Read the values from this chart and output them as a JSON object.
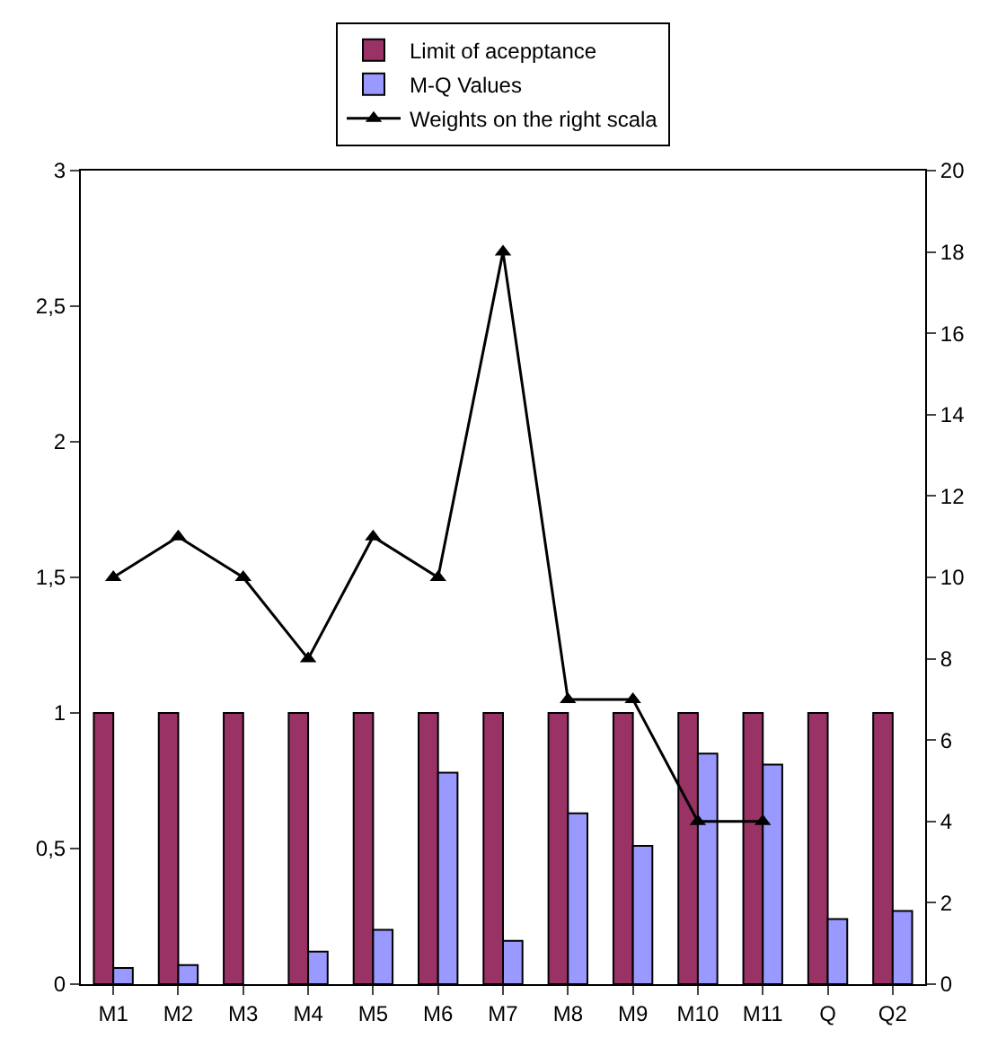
{
  "chart_data": {
    "type": "bar",
    "categories": [
      "M1",
      "M2",
      "M3",
      "M4",
      "M5",
      "M6",
      "M7",
      "M8",
      "M9",
      "M10",
      "M11",
      "Q",
      "Q2"
    ],
    "series": [
      {
        "name": "Limit of acepptance",
        "color": "#993366",
        "values": [
          1,
          1,
          1,
          1,
          1,
          1,
          1,
          1,
          1,
          1,
          1,
          1,
          1
        ]
      },
      {
        "name": "M-Q Values",
        "color": "#9999ff",
        "values": [
          0.06,
          0.07,
          null,
          0.12,
          0.2,
          0.78,
          0.16,
          0.63,
          0.51,
          0.85,
          0.81,
          0.24,
          0.27
        ]
      },
      {
        "name": "Weights on the right scala",
        "type": "line",
        "axis": "y2",
        "marker": "triangle",
        "color": "#000000",
        "values": [
          10,
          11,
          10,
          8,
          11,
          10,
          18,
          7,
          7,
          4,
          4,
          null,
          null
        ]
      }
    ],
    "ylim": [
      0,
      3
    ],
    "yticks": [
      0,
      {
        "value": 0.5,
        "label": "0,5"
      },
      1,
      {
        "value": 1.5,
        "label": "1,5"
      },
      2,
      {
        "value": 2.5,
        "label": "2,5"
      },
      3
    ],
    "y2lim": [
      0,
      20
    ],
    "y2ticks": [
      0,
      2,
      4,
      6,
      8,
      10,
      12,
      14,
      16,
      18,
      20
    ],
    "grid": false,
    "legend": "top"
  }
}
